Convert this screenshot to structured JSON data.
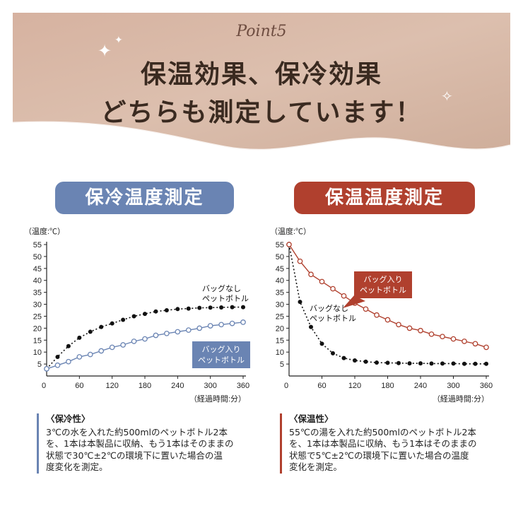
{
  "header": {
    "point_label": "Point5",
    "line1": "保温効果、保冷効果",
    "line2": "どちらも測定しています！"
  },
  "colors": {
    "hero_bg": "#d9b9a8",
    "dark_text": "#3a2a20",
    "cool_accent": "#6a84b3",
    "warm_accent": "#b0402e",
    "series_black": "#111111"
  },
  "cooling": {
    "pill_label": "保冷温度測定",
    "note_title": "〈保冷性〉",
    "note_lines": [
      "3℃の水を入れた約500mlのペットボトル2本",
      "を、1本は本製品に収納、もう1本はそのままの",
      "状態で30℃±2℃の環境下に置いた場合の温",
      "度変化を測定。"
    ]
  },
  "warming": {
    "pill_label": "保温温度測定",
    "note_title": "〈保温性〉",
    "note_lines": [
      "55℃の湯を入れた約500mlのペットボトル2本",
      "を、1本は本製品に収納、もう1本はそのままの",
      "状態で5℃±2℃の環境下に置いた場合の温度",
      "変化を測定。"
    ]
  },
  "chart_data": [
    {
      "type": "line",
      "ylabel": "（温度:℃）",
      "xlabel": "（経過時間:分）",
      "xlim": [
        0,
        360
      ],
      "ylim": [
        0,
        55
      ],
      "xticks": [
        "0",
        "60",
        "120",
        "180",
        "240",
        "300",
        "360"
      ],
      "yticks": [
        "5",
        "10",
        "15",
        "20",
        "25",
        "30",
        "35",
        "40",
        "45",
        "50",
        "55"
      ],
      "x": [
        0,
        20,
        40,
        60,
        80,
        100,
        120,
        140,
        160,
        180,
        200,
        220,
        240,
        260,
        280,
        300,
        320,
        340,
        360
      ],
      "series": [
        {
          "name": "バッグなし ペットボトル",
          "label_lines": [
            "バッグなし",
            "ペットボトル"
          ],
          "color": "#111111",
          "style": "dotted-filled",
          "values": [
            3,
            8,
            12.5,
            16,
            18.5,
            20.5,
            22,
            23.5,
            25,
            26,
            27,
            27.5,
            28,
            28.2,
            28.5,
            28.6,
            28.7,
            28.8,
            28.8
          ]
        },
        {
          "name": "バッグ入り ペットボトル",
          "label_lines": [
            "バッグ入り",
            "ペットボトル"
          ],
          "color": "#6a84b3",
          "style": "solid-open",
          "values": [
            3,
            4.5,
            6,
            8,
            9,
            10.5,
            12,
            13,
            14.5,
            15.5,
            17,
            17.8,
            18.5,
            19.2,
            20,
            21,
            21.5,
            22,
            22.5
          ]
        }
      ]
    },
    {
      "type": "line",
      "ylabel": "（温度:℃）",
      "xlabel": "（経過時間:分）",
      "xlim": [
        0,
        360
      ],
      "ylim": [
        0,
        55
      ],
      "xticks": [
        "0",
        "60",
        "120",
        "180",
        "240",
        "300",
        "360"
      ],
      "yticks": [
        "5",
        "10",
        "15",
        "20",
        "25",
        "30",
        "35",
        "40",
        "45",
        "50",
        "55"
      ],
      "x": [
        0,
        20,
        40,
        60,
        80,
        100,
        120,
        140,
        160,
        180,
        200,
        220,
        240,
        260,
        280,
        300,
        320,
        340,
        360
      ],
      "series": [
        {
          "name": "バッグなし ペットボトル",
          "label_lines": [
            "バッグなし",
            "ペットボトル"
          ],
          "color": "#111111",
          "style": "dotted-filled",
          "values": [
            55,
            31,
            20.5,
            13.5,
            9.5,
            7.5,
            6.5,
            6,
            5.6,
            5.5,
            5.4,
            5.3,
            5.3,
            5.2,
            5.2,
            5.2,
            5.1,
            5.1,
            5.1
          ]
        },
        {
          "name": "バッグ入り ペットボトル",
          "label_lines": [
            "バッグ入り",
            "ペットボトル"
          ],
          "color": "#b0402e",
          "style": "solid-open",
          "values": [
            55,
            48,
            42.5,
            39.5,
            36.5,
            33.5,
            30.5,
            28,
            25.5,
            23.5,
            21.5,
            20,
            19,
            17.5,
            16.5,
            15.5,
            14.5,
            13.5,
            12
          ]
        }
      ]
    }
  ]
}
